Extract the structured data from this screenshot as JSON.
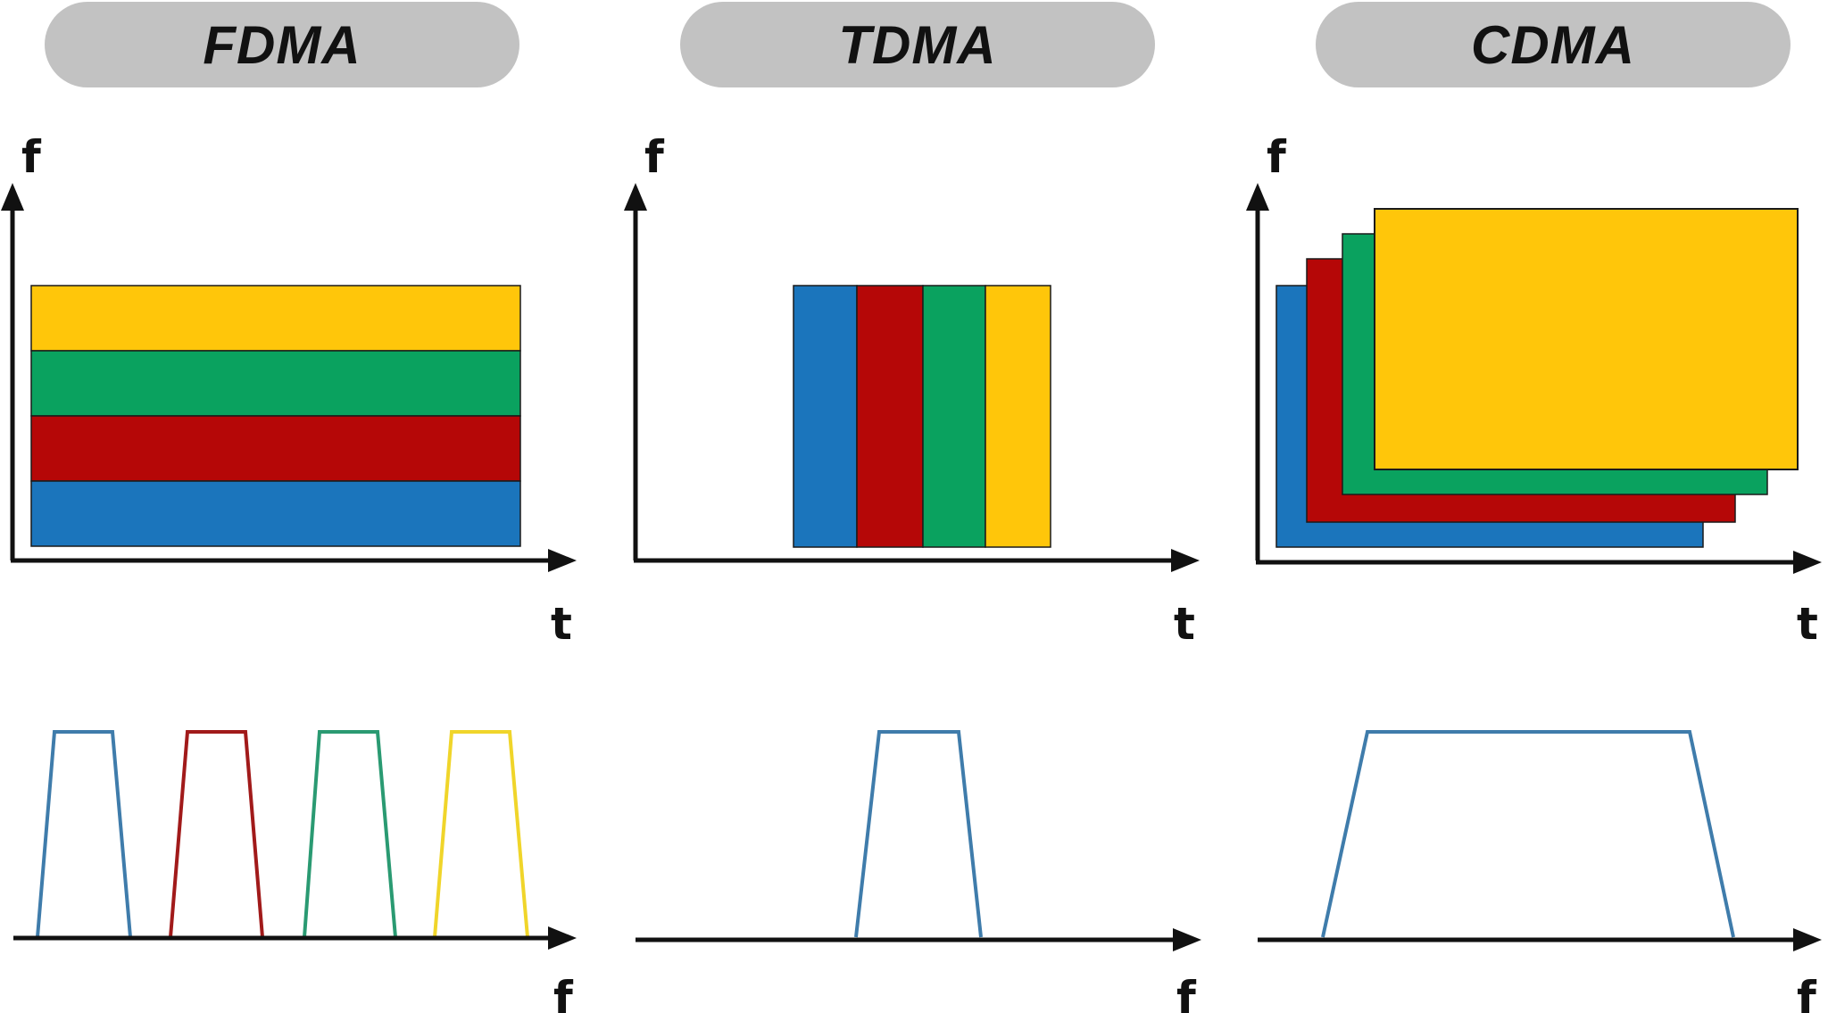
{
  "panels": [
    {
      "title": "FDMA",
      "time_freq_plot": {
        "y_axis_label": "f",
        "x_axis_label": "t"
      },
      "spectrum_plot": {
        "x_axis_label": "f"
      }
    },
    {
      "title": "TDMA",
      "time_freq_plot": {
        "y_axis_label": "f",
        "x_axis_label": "t"
      },
      "spectrum_plot": {
        "x_axis_label": "f"
      }
    },
    {
      "title": "CDMA",
      "time_freq_plot": {
        "y_axis_label": "f",
        "x_axis_label": "t"
      },
      "spectrum_plot": {
        "x_axis_label": "f"
      }
    }
  ],
  "colors": {
    "blue": "#1b75bc",
    "red": "#b50707",
    "green": "#0aa25f",
    "yellow": "#ffc60a",
    "pill_background": "#c2c2c2",
    "axis": "#111111",
    "spectrum_blue": "#3f7cab",
    "spectrum_red": "#a11a1a",
    "spectrum_green": "#2a9a72",
    "spectrum_yellow": "#f0d52a"
  }
}
